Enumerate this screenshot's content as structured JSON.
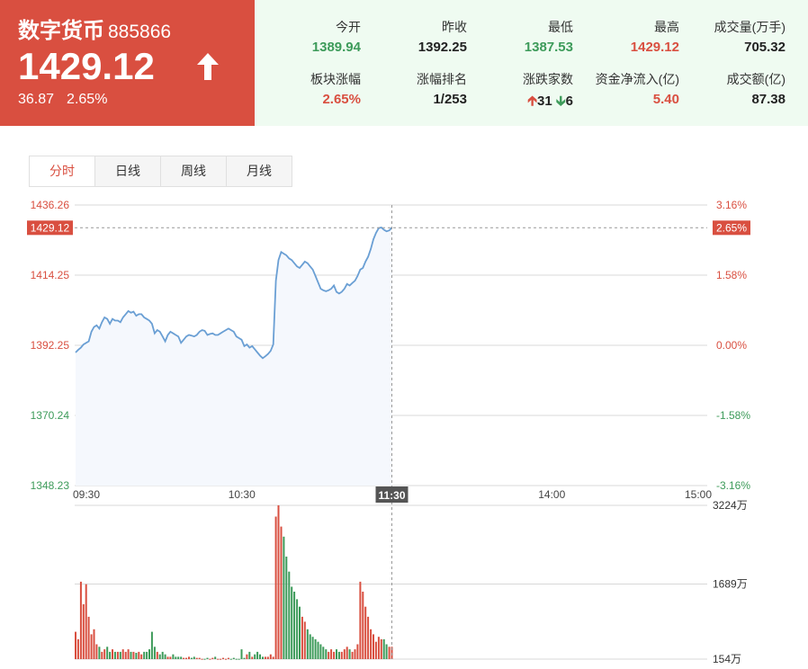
{
  "header": {
    "name": "数字货币",
    "code": "885866",
    "price": "1429.12",
    "change": "36.87",
    "change_pct": "2.65%"
  },
  "stats": [
    {
      "label": "今开",
      "value": "1389.94",
      "color": "green"
    },
    {
      "label": "昨收",
      "value": "1392.25",
      "color": "dark"
    },
    {
      "label": "最低",
      "value": "1387.53",
      "color": "green"
    },
    {
      "label": "最高",
      "value": "1429.12",
      "color": "red"
    },
    {
      "label": "成交量(万手)",
      "value": "705.32",
      "color": "dark"
    },
    {
      "label": "板块涨幅",
      "value": "2.65%",
      "color": "red"
    },
    {
      "label": "涨幅排名",
      "value": "1/253",
      "color": "dark"
    },
    {
      "label": "涨跌家数",
      "up": "31",
      "down": "6",
      "color": "dark"
    },
    {
      "label": "资金净流入(亿)",
      "value": "5.40",
      "color": "red"
    },
    {
      "label": "成交额(亿)",
      "value": "87.38",
      "color": "dark"
    }
  ],
  "tabs": [
    "分时",
    "日线",
    "周线",
    "月线"
  ],
  "active_tab": 0,
  "colors": {
    "up": "#d94f40",
    "down": "#3d9b5a",
    "line": "#6a9fd4",
    "accent": "#d94f40"
  },
  "chart_data": {
    "type": "line",
    "x_ticks": [
      "09:30",
      "10:30",
      "11:30",
      "14:00",
      "15:00"
    ],
    "price_ticks": [
      "1436.26",
      "1414.25",
      "1392.25",
      "1370.24",
      "1348.23"
    ],
    "pct_ticks": [
      "3.16%",
      "1.58%",
      "0.00%",
      "-1.58%",
      "-3.16%"
    ],
    "ylim": [
      1348.23,
      1436.26
    ],
    "prev_close": 1392.25,
    "current_price_label": "1429.12",
    "current_pct_label": "2.65%",
    "crosshair_time": "11:30",
    "volume_ticks": [
      "3224万",
      "1689万",
      "154万"
    ],
    "volume_ylim": [
      154,
      3224
    ],
    "price": [
      1390.0,
      1390.8,
      1391.5,
      1392.5,
      1393.0,
      1393.5,
      1396.5,
      1398.0,
      1398.5,
      1397.5,
      1399.5,
      1401.0,
      1400.5,
      1399.0,
      1400.5,
      1400.0,
      1400.0,
      1399.5,
      1401.0,
      1402.0,
      1403.0,
      1402.5,
      1402.8,
      1401.5,
      1402.0,
      1402.0,
      1401.0,
      1400.5,
      1400.0,
      1399.0,
      1396.0,
      1397.0,
      1396.5,
      1395.0,
      1393.5,
      1395.5,
      1396.5,
      1396.0,
      1395.5,
      1395.0,
      1393.0,
      1394.0,
      1395.0,
      1395.5,
      1395.3,
      1395.0,
      1395.5,
      1396.5,
      1397.0,
      1396.8,
      1395.5,
      1395.8,
      1396.0,
      1395.5,
      1395.5,
      1396.0,
      1396.5,
      1397.0,
      1397.5,
      1397.0,
      1396.5,
      1395.0,
      1394.5,
      1394.0,
      1392.0,
      1392.5,
      1391.5,
      1392.0,
      1391.0,
      1390.0,
      1389.0,
      1388.2,
      1388.8,
      1389.5,
      1390.5,
      1392.5,
      1412.5,
      1419.0,
      1421.5,
      1421.0,
      1420.5,
      1419.5,
      1419.0,
      1418.0,
      1417.0,
      1416.5,
      1417.5,
      1418.5,
      1418.0,
      1417.0,
      1416.0,
      1414.0,
      1412.0,
      1410.0,
      1409.5,
      1409.2,
      1409.5,
      1410.0,
      1411.0,
      1409.0,
      1408.5,
      1409.0,
      1410.0,
      1411.5,
      1411.0,
      1411.8,
      1412.5,
      1414.0,
      1416.0,
      1416.5,
      1418.5,
      1420.0,
      1422.5,
      1425.5,
      1427.5,
      1429.0,
      1429.2,
      1428.5,
      1428.0,
      1428.3,
      1429.12
    ],
    "volume": [
      700,
      550,
      1700,
      1250,
      1650,
      1000,
      650,
      750,
      450,
      400,
      300,
      350,
      400,
      300,
      350,
      300,
      300,
      300,
      350,
      300,
      350,
      300,
      300,
      280,
      300,
      250,
      300,
      300,
      350,
      700,
      400,
      300,
      250,
      300,
      250,
      200,
      200,
      250,
      200,
      200,
      200,
      180,
      180,
      200,
      180,
      200,
      180,
      180,
      160,
      160,
      180,
      160,
      180,
      200,
      160,
      160,
      180,
      160,
      180,
      160,
      180,
      160,
      160,
      350,
      180,
      250,
      300,
      200,
      250,
      300,
      250,
      200,
      200,
      200,
      250,
      200,
      3000,
      3224,
      2800,
      2600,
      2200,
      1900,
      1600,
      1500,
      1350,
      1200,
      1000,
      900,
      750,
      650,
      600,
      550,
      500,
      450,
      400,
      350,
      300,
      350,
      300,
      350,
      300,
      300,
      350,
      400,
      350,
      300,
      350,
      450,
      1700,
      1500,
      1200,
      1000,
      750,
      650,
      500,
      600,
      550,
      550,
      450,
      400,
      400
    ]
  }
}
